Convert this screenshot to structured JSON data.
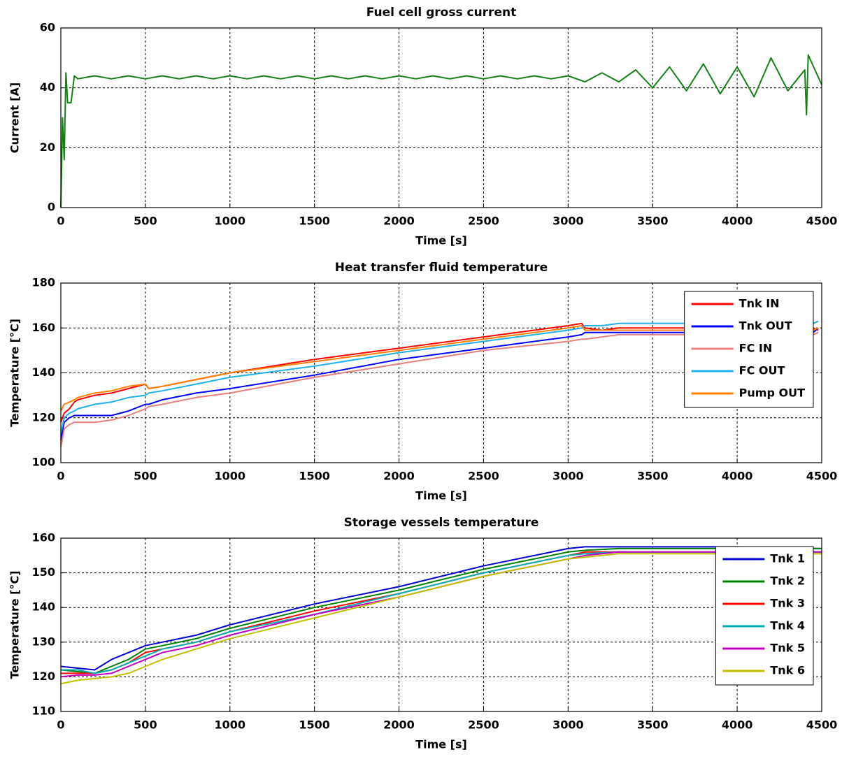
{
  "chart_data": [
    {
      "type": "line",
      "title": "Fuel cell gross current",
      "xlabel": "Time [s]",
      "ylabel": "Current [A]",
      "x": [
        0,
        10,
        20,
        30,
        40,
        60,
        80,
        100,
        200,
        300,
        400,
        500,
        600,
        700,
        800,
        900,
        1000,
        1100,
        1200,
        1300,
        1400,
        1500,
        1600,
        1700,
        1800,
        1900,
        2000,
        2100,
        2200,
        2300,
        2400,
        2500,
        2600,
        2700,
        2800,
        2900,
        3000,
        3100,
        3200,
        3300,
        3400,
        3500,
        3600,
        3700,
        3800,
        3900,
        4000,
        4100,
        4200,
        4300,
        4400,
        4410,
        4420,
        4500
      ],
      "values": [
        0,
        30,
        16,
        45,
        35,
        35,
        44,
        43,
        44,
        43,
        44,
        43,
        44,
        43,
        44,
        43,
        44,
        43,
        44,
        43,
        44,
        43,
        44,
        43,
        44,
        43,
        44,
        43,
        44,
        43,
        44,
        43,
        44,
        43,
        44,
        43,
        44,
        42,
        45,
        42,
        46,
        40,
        47,
        39,
        48,
        38,
        47,
        37,
        50,
        39,
        46,
        31,
        51,
        41
      ],
      "color": "#168016",
      "xlim": [
        0,
        4500
      ],
      "xticks": [
        0,
        500,
        1000,
        1500,
        2000,
        2500,
        3000,
        3500,
        4000,
        4500
      ],
      "ylim": [
        0,
        60
      ],
      "yticks": [
        0,
        20,
        40,
        60
      ],
      "grid": true
    },
    {
      "type": "line",
      "title": "Heat transfer fluid temperature",
      "xlabel": "Time [s]",
      "ylabel": "Temperature [°C]",
      "x": [
        0,
        20,
        50,
        80,
        100,
        200,
        300,
        400,
        500,
        520,
        600,
        800,
        1000,
        1500,
        2000,
        2500,
        3000,
        3080,
        3100,
        3200,
        3300,
        3500,
        4000,
        4450,
        4480
      ],
      "series": [
        {
          "name": "Tnk IN",
          "color": "#ff0000",
          "values": [
            118,
            122,
            124,
            127,
            128,
            130,
            131,
            133,
            135,
            133,
            134,
            137,
            140,
            146,
            151,
            156,
            161,
            162,
            160,
            159,
            160,
            160,
            160,
            160,
            159
          ]
        },
        {
          "name": "Tnk OUT",
          "color": "#0000ff",
          "values": [
            110,
            118,
            120,
            121,
            121,
            121,
            121,
            123,
            126,
            126,
            128,
            131,
            133,
            139,
            146,
            151,
            156,
            157,
            158,
            158,
            158,
            158,
            158,
            158,
            160
          ]
        },
        {
          "name": "FC IN",
          "color": "#e88080",
          "values": [
            107,
            115,
            117,
            118,
            118,
            118,
            119,
            121,
            124,
            125,
            126,
            129,
            131,
            138,
            144,
            150,
            154,
            155,
            155,
            156,
            157,
            157,
            157,
            157,
            158
          ]
        },
        {
          "name": "FC OUT",
          "color": "#22b0e8",
          "values": [
            113,
            120,
            122,
            123,
            124,
            126,
            127,
            129,
            130,
            131,
            132,
            135,
            138,
            143,
            149,
            154,
            159,
            160,
            161,
            161,
            162,
            162,
            162,
            162,
            163
          ]
        },
        {
          "name": "Pump OUT",
          "color": "#ff8000",
          "values": [
            123,
            126,
            127,
            128,
            129,
            131,
            132,
            134,
            135,
            133,
            134,
            137,
            140,
            145,
            150,
            155,
            160,
            161,
            159,
            159,
            159,
            159,
            159,
            159,
            160
          ]
        }
      ],
      "xlim": [
        0,
        4500
      ],
      "xticks": [
        0,
        500,
        1000,
        1500,
        2000,
        2500,
        3000,
        3500,
        4000,
        4500
      ],
      "ylim": [
        100,
        180
      ],
      "yticks": [
        100,
        120,
        140,
        160,
        180
      ],
      "grid": true,
      "legend": "upper right"
    },
    {
      "type": "line",
      "title": "Storage vessels temperature",
      "xlabel": "Time [s]",
      "ylabel": "Temperature [°C]",
      "x": [
        0,
        100,
        200,
        300,
        400,
        500,
        600,
        800,
        1000,
        1500,
        2000,
        2500,
        3000,
        3100,
        3300,
        3500,
        4000,
        4500
      ],
      "series": [
        {
          "name": "Tnk 1",
          "color": "#0000cc",
          "values": [
            123,
            122.5,
            122,
            125,
            127,
            129,
            130,
            132,
            135,
            141,
            146,
            152,
            157,
            157.5,
            157.5,
            157.5,
            157.5,
            157
          ]
        },
        {
          "name": "Tnk 2",
          "color": "#008000",
          "values": [
            122,
            121.5,
            121,
            123,
            125,
            128,
            129,
            131,
            134,
            140,
            145,
            151,
            156,
            156.5,
            157,
            157,
            157,
            157
          ]
        },
        {
          "name": "Tnk 3",
          "color": "#ff0000",
          "values": [
            121,
            121,
            121,
            122,
            124,
            127,
            128,
            130,
            133,
            139,
            144,
            150,
            155,
            156,
            156,
            156,
            156,
            156
          ]
        },
        {
          "name": "Tnk 4",
          "color": "#00b0b0",
          "values": [
            122,
            122,
            121,
            122,
            124,
            126,
            128,
            130,
            133,
            138,
            144,
            150,
            155,
            155.5,
            156,
            156,
            156,
            156
          ]
        },
        {
          "name": "Tnk 5",
          "color": "#c000c0",
          "values": [
            120,
            120.5,
            120.5,
            121,
            123,
            125,
            127,
            129,
            132,
            138,
            143,
            149,
            154,
            155,
            156,
            156,
            156,
            156
          ]
        },
        {
          "name": "Tnk 6",
          "color": "#c0c000",
          "values": [
            118,
            119,
            119.5,
            120,
            121,
            123,
            125,
            128,
            131,
            137,
            143,
            149,
            154,
            154.5,
            155.5,
            155.5,
            155.5,
            155.5
          ]
        }
      ],
      "xlim": [
        0,
        4500
      ],
      "xticks": [
        0,
        500,
        1000,
        1500,
        2000,
        2500,
        3000,
        3500,
        4000,
        4500
      ],
      "ylim": [
        110,
        160
      ],
      "yticks": [
        110,
        120,
        130,
        140,
        150,
        160
      ],
      "grid": true,
      "legend": "upper right"
    }
  ]
}
